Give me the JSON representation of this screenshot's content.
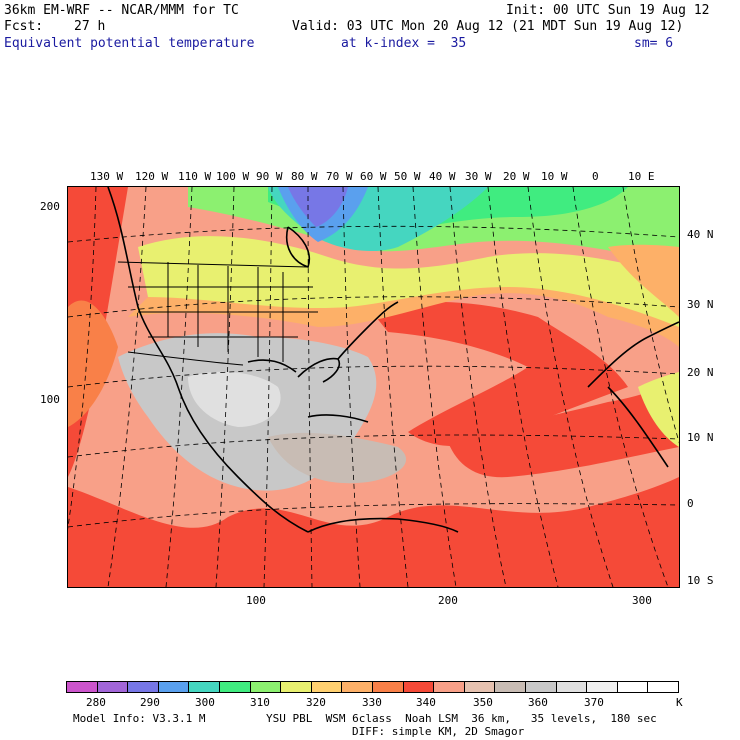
{
  "header": {
    "model": "36km EM-WRF -- NCAR/MMM for TC",
    "init": "Init: 00 UTC Sun 19 Aug 12",
    "fcst_label": "Fcst:",
    "fcst_value": "27 h",
    "valid": "Valid: 03 UTC Mon 20 Aug 12 (21 MDT Sun 19 Aug 12)",
    "field": "Equivalent potential temperature",
    "kindex": "at k-index =  35",
    "sm": "sm= 6"
  },
  "map": {
    "top_lon_labels": [
      "130 W",
      "120 W",
      "110 W",
      "100 W",
      "90 W",
      "80 W",
      "70 W",
      "60 W",
      "50 W",
      "40 W",
      "30 W",
      "20 W",
      "10 W",
      "0",
      "10 E"
    ],
    "right_lat_labels": [
      "40 N",
      "30 N",
      "20 N",
      "10 N",
      "0",
      "10 S"
    ],
    "left_grid_labels": [
      "200",
      "100"
    ],
    "bottom_grid_labels": [
      "100",
      "200",
      "300"
    ]
  },
  "colorbar": {
    "unit": "K",
    "labels": [
      "280",
      "290",
      "300",
      "310",
      "320",
      "330",
      "340",
      "350",
      "360",
      "370"
    ],
    "colors": [
      "#cc55cc",
      "#a266d8",
      "#7777e6",
      "#5aa0ee",
      "#45d6c0",
      "#40ec80",
      "#8cf070",
      "#e8f070",
      "#ffd070",
      "#fdb068",
      "#f98048",
      "#f54a38",
      "#f8a088",
      "#e6c2b0",
      "#c8bcb4",
      "#c8c8c8",
      "#e0e0e0",
      "#f0f0f0",
      "#ffffff",
      "#ffffff"
    ]
  },
  "footer": {
    "model_info": "Model Info: V3.3.1 M",
    "physics": "YSU PBL  WSM 6class  Noah LSM  36 km,   35 levels,  180 sec",
    "diff": "DIFF: simple KM, 2D Smagor"
  }
}
